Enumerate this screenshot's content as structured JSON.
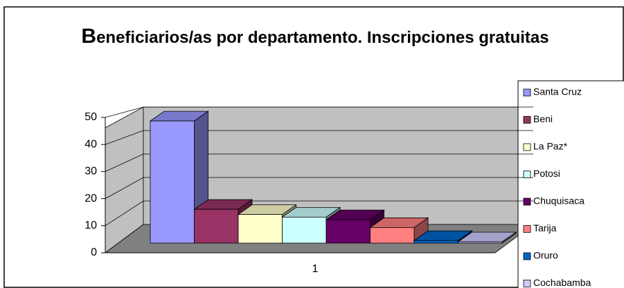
{
  "chart_data": {
    "type": "bar3d",
    "title": "Beneficiarios/as por departamento. Inscripciones gratuitas",
    "categories": [
      "1"
    ],
    "series": [
      {
        "name": "Santa Cruz",
        "color": "#9999ff",
        "values": [
          47
        ]
      },
      {
        "name": "Beni",
        "color": "#993366",
        "values": [
          13
        ]
      },
      {
        "name": "La Paz*",
        "color": "#ffffcc",
        "values": [
          11
        ]
      },
      {
        "name": "Potosi",
        "color": "#ccffff",
        "values": [
          10
        ]
      },
      {
        "name": "Chuquisaca",
        "color": "#660066",
        "values": [
          9
        ]
      },
      {
        "name": "Tarija",
        "color": "#ff8080",
        "values": [
          6
        ]
      },
      {
        "name": "Oruro",
        "color": "#0066cc",
        "values": [
          1
        ]
      },
      {
        "name": "Cochabamba",
        "color": "#ccccff",
        "values": [
          0.5
        ]
      }
    ],
    "ylim": [
      0,
      50
    ],
    "yticks": [
      0,
      10,
      20,
      30,
      40,
      50
    ],
    "grid": true,
    "legend": "right"
  }
}
